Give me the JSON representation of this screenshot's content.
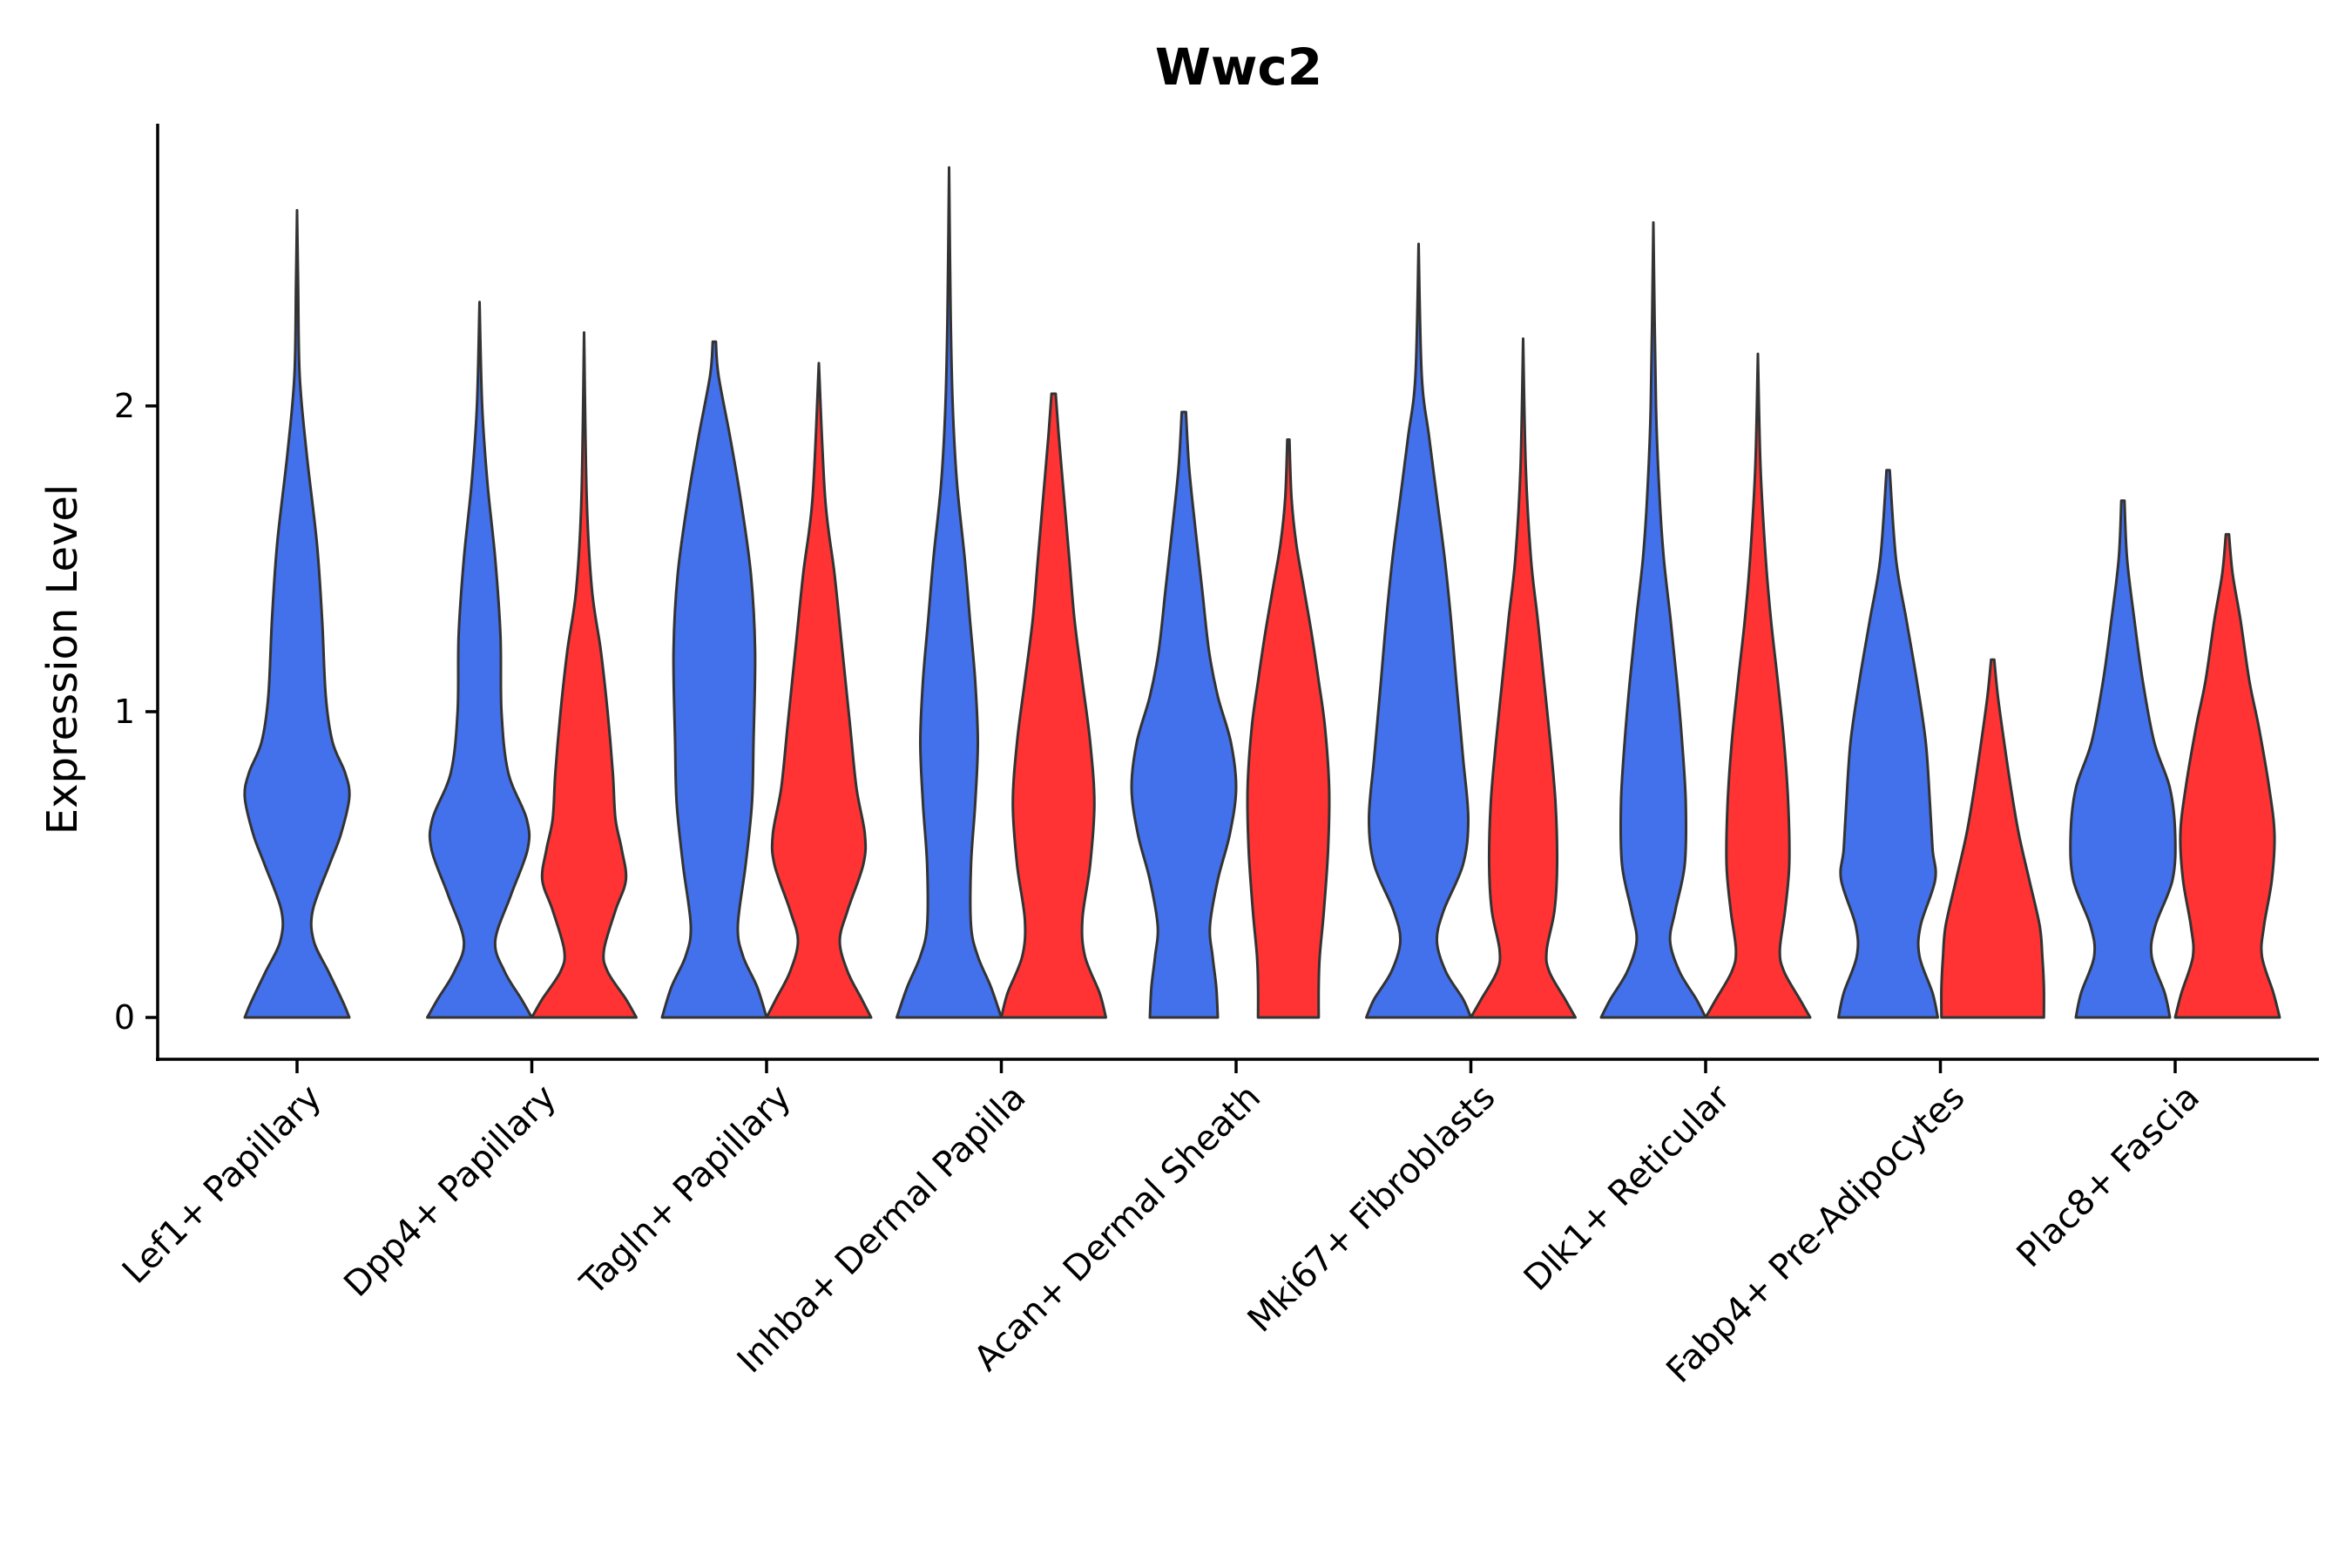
{
  "chart_data": {
    "type": "violin",
    "title": "Wwc2",
    "xlabel": "",
    "ylabel": "Expression Level",
    "ylim": [
      -0.14,
      2.95
    ],
    "yticks": [
      0,
      1,
      2
    ],
    "grid": false,
    "legend": "none",
    "colors": {
      "group1": "#4370EB",
      "group2": "#FF3333",
      "outline": "#333333"
    },
    "categories": [
      "Lef1+ Papillary",
      "Dpp4+ Papillary",
      "Tagln+ Papillary",
      "Inhba+ Dermal Papilla",
      "Acan+ Dermal Sheath",
      "Mki67+ Fibroblasts",
      "Dlk1+ Reticular",
      "Fabp4+ Pre-Adipocytes",
      "Plac8+ Fascia"
    ],
    "series": [
      {
        "name": "group1",
        "color": "#4370EB",
        "values": [
          {
            "category": "Lef1+ Papillary",
            "max": 2.64,
            "profile": [
              [
                0,
                1
              ],
              [
                0.05,
                0.88
              ],
              [
                0.15,
                0.6
              ],
              [
                0.25,
                0.32
              ],
              [
                0.35,
                0.3
              ],
              [
                0.5,
                0.62
              ],
              [
                0.6,
                0.84
              ],
              [
                0.72,
                1.0
              ],
              [
                0.8,
                0.92
              ],
              [
                0.9,
                0.68
              ],
              [
                1.05,
                0.55
              ],
              [
                1.3,
                0.48
              ],
              [
                1.55,
                0.38
              ],
              [
                1.85,
                0.18
              ],
              [
                2.1,
                0.05
              ],
              [
                2.4,
                0.02
              ],
              [
                2.64,
                0
              ]
            ]
          },
          {
            "category": "Dpp4+ Papillary",
            "max": 2.34,
            "profile": [
              [
                0,
                1
              ],
              [
                0.06,
                0.8
              ],
              [
                0.15,
                0.48
              ],
              [
                0.25,
                0.3
              ],
              [
                0.4,
                0.6
              ],
              [
                0.55,
                0.92
              ],
              [
                0.65,
                0.9
              ],
              [
                0.8,
                0.55
              ],
              [
                1.0,
                0.42
              ],
              [
                1.25,
                0.4
              ],
              [
                1.5,
                0.3
              ],
              [
                1.75,
                0.15
              ],
              [
                2.0,
                0.05
              ],
              [
                2.34,
                0
              ]
            ]
          },
          {
            "category": "Tagln+ Papillary",
            "max": 2.21,
            "profile": [
              [
                0,
                1
              ],
              [
                0.1,
                0.82
              ],
              [
                0.2,
                0.55
              ],
              [
                0.3,
                0.45
              ],
              [
                0.5,
                0.6
              ],
              [
                0.7,
                0.72
              ],
              [
                0.9,
                0.75
              ],
              [
                1.2,
                0.78
              ],
              [
                1.45,
                0.7
              ],
              [
                1.7,
                0.5
              ],
              [
                1.9,
                0.3
              ],
              [
                2.1,
                0.08
              ],
              [
                2.21,
                0.03
              ]
            ]
          },
          {
            "category": "Inhba+ Dermal Papilla",
            "max": 2.78,
            "profile": [
              [
                0,
                1
              ],
              [
                0.1,
                0.8
              ],
              [
                0.2,
                0.55
              ],
              [
                0.3,
                0.42
              ],
              [
                0.5,
                0.42
              ],
              [
                0.7,
                0.5
              ],
              [
                0.9,
                0.55
              ],
              [
                1.1,
                0.5
              ],
              [
                1.3,
                0.4
              ],
              [
                1.5,
                0.3
              ],
              [
                1.75,
                0.15
              ],
              [
                2.0,
                0.07
              ],
              [
                2.3,
                0.03
              ],
              [
                2.78,
                0
              ]
            ]
          },
          {
            "category": "Acan+ Dermal Sheath",
            "max": 1.98,
            "profile": [
              [
                0,
                0.65
              ],
              [
                0.1,
                0.62
              ],
              [
                0.2,
                0.55
              ],
              [
                0.3,
                0.5
              ],
              [
                0.45,
                0.65
              ],
              [
                0.6,
                0.88
              ],
              [
                0.75,
                1.0
              ],
              [
                0.9,
                0.9
              ],
              [
                1.05,
                0.65
              ],
              [
                1.2,
                0.48
              ],
              [
                1.4,
                0.35
              ],
              [
                1.6,
                0.22
              ],
              [
                1.8,
                0.1
              ],
              [
                1.98,
                0.04
              ]
            ]
          },
          {
            "category": "Mki67+ Fibroblasts",
            "max": 2.53,
            "profile": [
              [
                0,
                1
              ],
              [
                0.06,
                0.85
              ],
              [
                0.15,
                0.52
              ],
              [
                0.25,
                0.35
              ],
              [
                0.35,
                0.48
              ],
              [
                0.5,
                0.85
              ],
              [
                0.65,
                0.95
              ],
              [
                0.85,
                0.85
              ],
              [
                1.1,
                0.72
              ],
              [
                1.3,
                0.62
              ],
              [
                1.5,
                0.5
              ],
              [
                1.7,
                0.35
              ],
              [
                1.9,
                0.2
              ],
              [
                2.1,
                0.06
              ],
              [
                2.53,
                0
              ]
            ]
          },
          {
            "category": "Dlk1+ Reticular",
            "max": 2.6,
            "profile": [
              [
                0,
                1
              ],
              [
                0.06,
                0.82
              ],
              [
                0.15,
                0.5
              ],
              [
                0.25,
                0.32
              ],
              [
                0.35,
                0.42
              ],
              [
                0.5,
                0.6
              ],
              [
                0.7,
                0.62
              ],
              [
                0.9,
                0.55
              ],
              [
                1.1,
                0.45
              ],
              [
                1.3,
                0.33
              ],
              [
                1.5,
                0.2
              ],
              [
                1.7,
                0.12
              ],
              [
                2.0,
                0.05
              ],
              [
                2.6,
                0
              ]
            ]
          },
          {
            "category": "Fabp4+ Pre-Adipocytes",
            "max": 1.79,
            "profile": [
              [
                0,
                0.95
              ],
              [
                0.08,
                0.85
              ],
              [
                0.2,
                0.6
              ],
              [
                0.3,
                0.62
              ],
              [
                0.45,
                0.9
              ],
              [
                0.55,
                0.85
              ],
              [
                0.7,
                0.8
              ],
              [
                0.9,
                0.72
              ],
              [
                1.1,
                0.55
              ],
              [
                1.3,
                0.35
              ],
              [
                1.5,
                0.15
              ],
              [
                1.79,
                0.03
              ]
            ]
          },
          {
            "category": "Plac8+ Fascia",
            "max": 1.69,
            "profile": [
              [
                0,
                0.9
              ],
              [
                0.08,
                0.8
              ],
              [
                0.2,
                0.55
              ],
              [
                0.3,
                0.62
              ],
              [
                0.45,
                0.95
              ],
              [
                0.6,
                1.0
              ],
              [
                0.75,
                0.9
              ],
              [
                0.9,
                0.6
              ],
              [
                1.1,
                0.38
              ],
              [
                1.3,
                0.22
              ],
              [
                1.5,
                0.08
              ],
              [
                1.69,
                0.03
              ]
            ]
          }
        ]
      },
      {
        "name": "group2",
        "color": "#FF3333",
        "values": [
          {
            "category": "Dpp4+ Papillary",
            "max": 2.24,
            "profile": [
              [
                0,
                1
              ],
              [
                0.06,
                0.8
              ],
              [
                0.15,
                0.45
              ],
              [
                0.22,
                0.38
              ],
              [
                0.35,
                0.6
              ],
              [
                0.45,
                0.8
              ],
              [
                0.55,
                0.72
              ],
              [
                0.65,
                0.6
              ],
              [
                0.8,
                0.55
              ],
              [
                1.0,
                0.45
              ],
              [
                1.2,
                0.32
              ],
              [
                1.4,
                0.15
              ],
              [
                1.7,
                0.05
              ],
              [
                2.24,
                0
              ]
            ]
          },
          {
            "category": "Tagln+ Papillary",
            "max": 2.14,
            "profile": [
              [
                0,
                1
              ],
              [
                0.06,
                0.82
              ],
              [
                0.15,
                0.55
              ],
              [
                0.25,
                0.4
              ],
              [
                0.35,
                0.55
              ],
              [
                0.5,
                0.85
              ],
              [
                0.6,
                0.88
              ],
              [
                0.75,
                0.72
              ],
              [
                0.95,
                0.6
              ],
              [
                1.2,
                0.45
              ],
              [
                1.45,
                0.3
              ],
              [
                1.7,
                0.12
              ],
              [
                2.14,
                0
              ]
            ]
          },
          {
            "category": "Inhba+ Dermal Papilla",
            "max": 2.04,
            "profile": [
              [
                0,
                1
              ],
              [
                0.08,
                0.88
              ],
              [
                0.2,
                0.6
              ],
              [
                0.32,
                0.55
              ],
              [
                0.5,
                0.7
              ],
              [
                0.7,
                0.78
              ],
              [
                0.9,
                0.7
              ],
              [
                1.1,
                0.55
              ],
              [
                1.3,
                0.4
              ],
              [
                1.5,
                0.3
              ],
              [
                1.7,
                0.2
              ],
              [
                1.9,
                0.1
              ],
              [
                2.04,
                0.04
              ]
            ]
          },
          {
            "category": "Acan+ Dermal Sheath",
            "max": 1.89,
            "profile": [
              [
                0,
                0.58
              ],
              [
                0.1,
                0.58
              ],
              [
                0.2,
                0.6
              ],
              [
                0.35,
                0.68
              ],
              [
                0.55,
                0.76
              ],
              [
                0.75,
                0.78
              ],
              [
                0.95,
                0.7
              ],
              [
                1.1,
                0.58
              ],
              [
                1.25,
                0.45
              ],
              [
                1.4,
                0.3
              ],
              [
                1.55,
                0.15
              ],
              [
                1.7,
                0.06
              ],
              [
                1.89,
                0.02
              ]
            ]
          },
          {
            "category": "Mki67+ Fibroblasts",
            "max": 2.22,
            "profile": [
              [
                0,
                1
              ],
              [
                0.06,
                0.8
              ],
              [
                0.15,
                0.5
              ],
              [
                0.22,
                0.45
              ],
              [
                0.35,
                0.6
              ],
              [
                0.5,
                0.65
              ],
              [
                0.7,
                0.62
              ],
              [
                0.9,
                0.52
              ],
              [
                1.1,
                0.4
              ],
              [
                1.3,
                0.28
              ],
              [
                1.5,
                0.15
              ],
              [
                1.8,
                0.05
              ],
              [
                2.22,
                0
              ]
            ]
          },
          {
            "category": "Dlk1+ Reticular",
            "max": 2.17,
            "profile": [
              [
                0,
                1
              ],
              [
                0.06,
                0.8
              ],
              [
                0.15,
                0.5
              ],
              [
                0.22,
                0.42
              ],
              [
                0.35,
                0.52
              ],
              [
                0.5,
                0.6
              ],
              [
                0.7,
                0.58
              ],
              [
                0.9,
                0.5
              ],
              [
                1.1,
                0.38
              ],
              [
                1.3,
                0.25
              ],
              [
                1.5,
                0.15
              ],
              [
                1.8,
                0.05
              ],
              [
                2.17,
                0
              ]
            ]
          },
          {
            "category": "Fabp4+ Pre-Adipocytes",
            "max": 1.17,
            "profile": [
              [
                0,
                0.98
              ],
              [
                0.1,
                0.98
              ],
              [
                0.2,
                0.95
              ],
              [
                0.3,
                0.9
              ],
              [
                0.45,
                0.7
              ],
              [
                0.6,
                0.5
              ],
              [
                0.75,
                0.35
              ],
              [
                0.9,
                0.22
              ],
              [
                1.05,
                0.1
              ],
              [
                1.17,
                0.03
              ]
            ]
          },
          {
            "category": "Plac8+ Fascia",
            "max": 1.58,
            "profile": [
              [
                0,
                1
              ],
              [
                0.08,
                0.88
              ],
              [
                0.2,
                0.66
              ],
              [
                0.3,
                0.7
              ],
              [
                0.45,
                0.85
              ],
              [
                0.6,
                0.9
              ],
              [
                0.75,
                0.8
              ],
              [
                0.95,
                0.6
              ],
              [
                1.1,
                0.42
              ],
              [
                1.3,
                0.25
              ],
              [
                1.45,
                0.1
              ],
              [
                1.58,
                0.03
              ]
            ]
          }
        ]
      }
    ]
  }
}
